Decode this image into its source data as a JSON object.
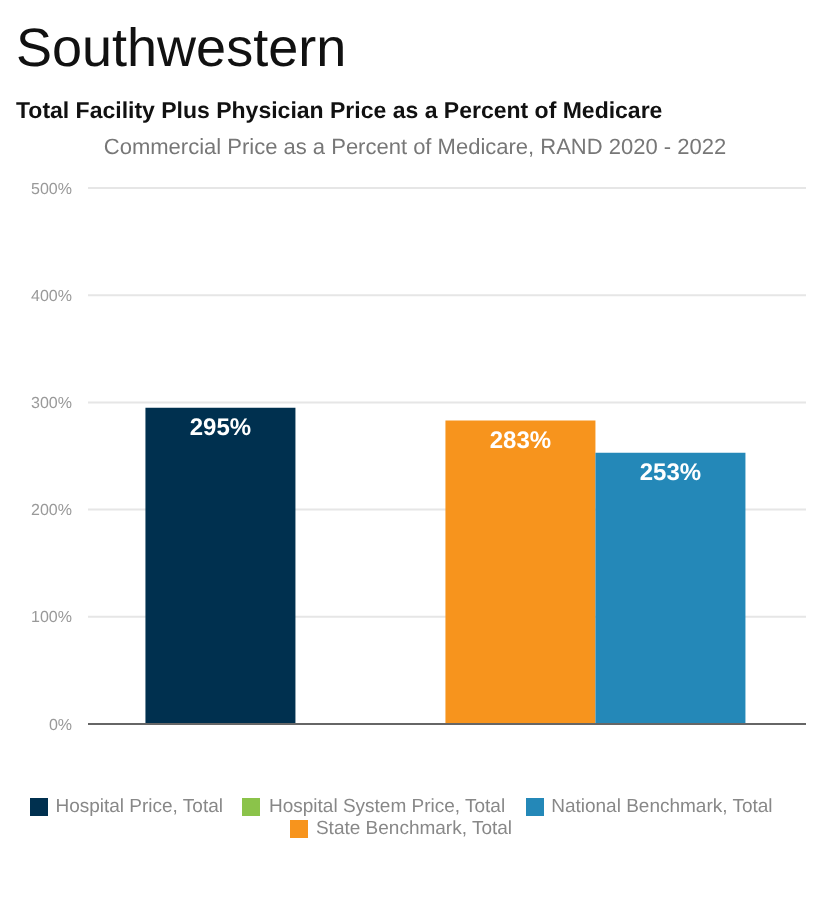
{
  "chart_data": {
    "type": "bar",
    "title": "Total Facility Plus Physician Price as a Percent of Medicare",
    "subtitle": "Commercial Price as a Percent of Medicare, RAND 2020 - 2022",
    "annotations": [
      "Southwestern"
    ],
    "categories": [
      null
    ],
    "series": [
      {
        "name": "Hospital Price, Total",
        "color": "#00304f",
        "values": [
          295
        ],
        "value_labels": [
          "295%"
        ]
      },
      {
        "name": "Hospital System Price, Total",
        "color": "#8bc34a",
        "values": [
          null
        ],
        "value_labels": [
          null
        ]
      },
      {
        "name": "State Benchmark, Total",
        "color": "#f7941d",
        "values": [
          283
        ],
        "value_labels": [
          "283%"
        ]
      },
      {
        "name": "National Benchmark, Total",
        "color": "#2488b8",
        "values": [
          253
        ],
        "value_labels": [
          "253%"
        ]
      }
    ],
    "ylim": [
      0,
      500
    ],
    "yticks": [
      {
        "value": 0,
        "label": "0%"
      },
      {
        "value": 100,
        "label": "100%"
      },
      {
        "value": 200,
        "label": "200%"
      },
      {
        "value": 300,
        "label": "300%"
      },
      {
        "value": 400,
        "label": "400%"
      },
      {
        "value": 500,
        "label": "500%"
      }
    ],
    "grid": "y",
    "legend": "bottom"
  }
}
